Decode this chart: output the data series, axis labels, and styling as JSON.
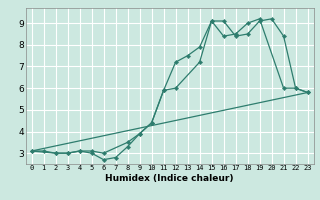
{
  "xlabel": "Humidex (Indice chaleur)",
  "ylabel": "",
  "bg_color": "#cce8e0",
  "grid_color": "#ffffff",
  "line_color": "#2e7d6e",
  "xlim": [
    -0.5,
    23.5
  ],
  "ylim": [
    2.5,
    9.7
  ],
  "xticks": [
    0,
    1,
    2,
    3,
    4,
    5,
    6,
    7,
    8,
    9,
    10,
    11,
    12,
    13,
    14,
    15,
    16,
    17,
    18,
    19,
    20,
    21,
    22,
    23
  ],
  "yticks": [
    3,
    4,
    5,
    6,
    7,
    8,
    9
  ],
  "line1_x": [
    0,
    1,
    2,
    3,
    4,
    5,
    6,
    7,
    8,
    9,
    10,
    11,
    12,
    13,
    14,
    15,
    16,
    17,
    18,
    19,
    20,
    21,
    22,
    23
  ],
  "line1_y": [
    3.1,
    3.1,
    3.0,
    3.0,
    3.1,
    3.0,
    2.7,
    2.8,
    3.3,
    3.9,
    4.4,
    5.9,
    7.2,
    7.5,
    7.9,
    9.1,
    9.1,
    8.4,
    8.5,
    9.1,
    9.2,
    8.4,
    6.0,
    5.8
  ],
  "line2_x": [
    0,
    2,
    3,
    4,
    5,
    6,
    8,
    9,
    10,
    11,
    12,
    14,
    15,
    16,
    17,
    18,
    19,
    21,
    22,
    23
  ],
  "line2_y": [
    3.1,
    3.0,
    3.0,
    3.1,
    3.1,
    3.0,
    3.5,
    3.9,
    4.4,
    5.9,
    6.0,
    7.2,
    9.1,
    8.4,
    8.5,
    9.0,
    9.2,
    6.0,
    6.0,
    5.8
  ],
  "line3_x": [
    0,
    23
  ],
  "line3_y": [
    3.1,
    5.8
  ],
  "xlabel_fontsize": 6.5,
  "ytick_fontsize": 6.5,
  "xtick_fontsize": 5.0
}
